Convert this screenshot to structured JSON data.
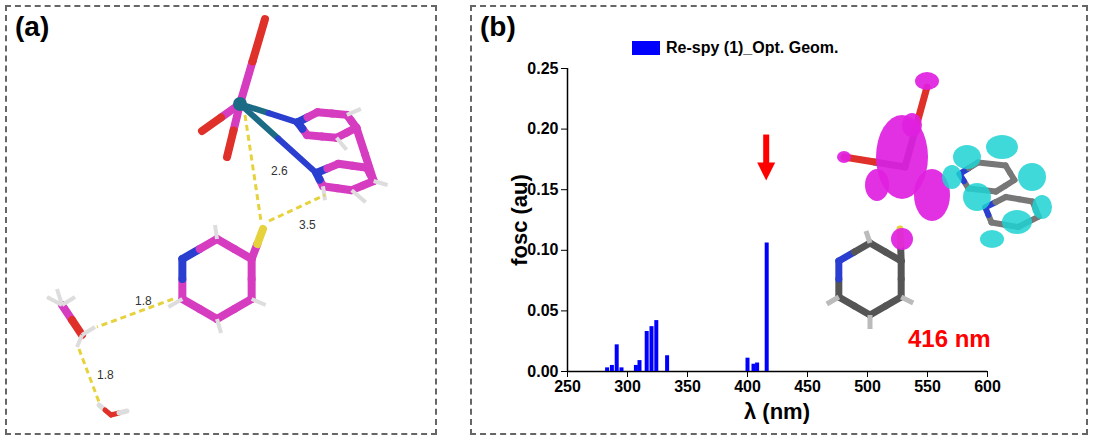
{
  "panel_a": {
    "label": "(a)",
    "distance_labels": [
      "2.6",
      "3.5",
      "1.8",
      "1.8"
    ]
  },
  "chart_data": {
    "type": "bar",
    "panel_label": "(b)",
    "x_label": "λ (nm)",
    "y_label": "fosc (au)",
    "x": [
      283,
      287,
      291,
      295,
      307,
      310,
      316,
      320,
      324,
      333,
      400,
      405,
      408,
      416
    ],
    "series": [
      {
        "name": "Re-spy (1)_Opt. Geom.",
        "color": "#0000ff",
        "values": [
          0.003,
          0.005,
          0.022,
          0.003,
          0.005,
          0.009,
          0.033,
          0.037,
          0.042,
          0.013,
          0.011,
          0.006,
          0.007,
          0.106
        ]
      }
    ],
    "xlim": [
      250,
      600
    ],
    "xticks": [
      250,
      300,
      350,
      400,
      450,
      500,
      550,
      600
    ],
    "ylim": [
      0,
      0.25
    ],
    "yticks": [
      {
        "value": 0,
        "label": "0.00"
      },
      {
        "value": 0.05,
        "label": "0.05"
      },
      {
        "value": 0.1,
        "label": "0.10"
      },
      {
        "value": 0.15,
        "label": "0.15"
      },
      {
        "value": 0.2,
        "label": "0.20"
      },
      {
        "value": 0.25,
        "label": "0.25"
      }
    ],
    "annotations": [
      {
        "text": "416 nm",
        "x": 416,
        "color": "#ff0000"
      }
    ],
    "legend": "top"
  }
}
